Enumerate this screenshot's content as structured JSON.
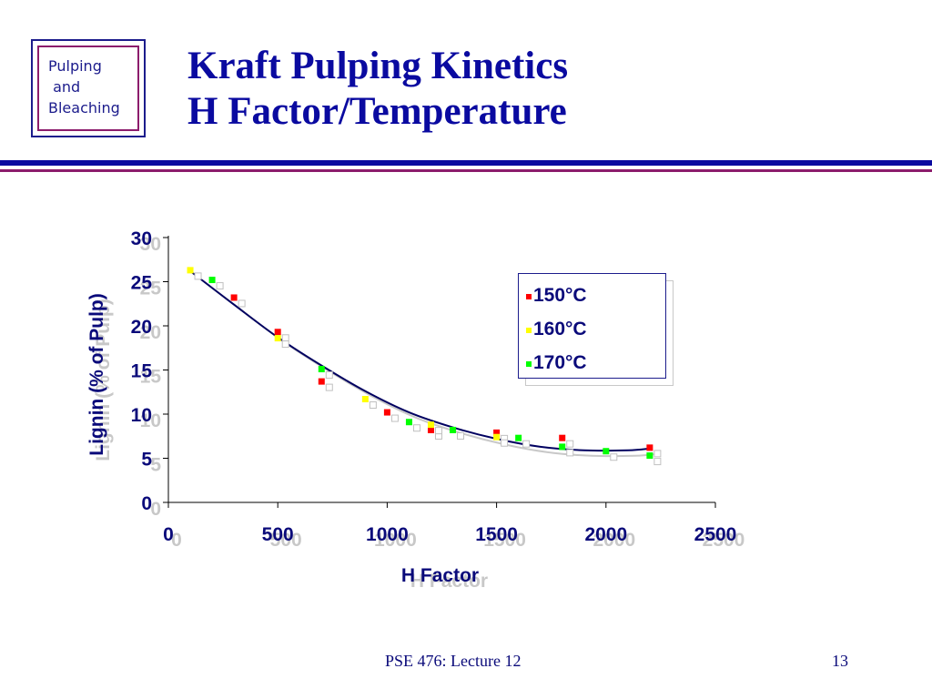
{
  "logo": {
    "lines": [
      "Pulping",
      " and",
      "Bleaching"
    ]
  },
  "title": {
    "line1": "Kraft Pulping Kinetics",
    "line2": "H Factor/Temperature"
  },
  "footer": {
    "course": "PSE 476: Lecture 12",
    "page": "13"
  },
  "colors": {
    "accent": "#0a0aa0",
    "secondary": "#8c1c6c"
  },
  "chart_data": {
    "type": "scatter",
    "xlabel": "H Factor",
    "ylabel": "Lignin (% of Pulp)",
    "xlim": [
      0,
      2500
    ],
    "ylim": [
      0,
      30
    ],
    "x_ticks": [
      "0",
      "500",
      "1000",
      "1500",
      "2000",
      "2500"
    ],
    "y_ticks": [
      "0",
      "5",
      "10",
      "15",
      "20",
      "25",
      "30"
    ],
    "legend_position": "top-right",
    "series": [
      {
        "name": "150°C",
        "color": "#ff0000",
        "points": [
          [
            300,
            23.2
          ],
          [
            500,
            19.3
          ],
          [
            700,
            13.7
          ],
          [
            1000,
            10.2
          ],
          [
            1200,
            8.2
          ],
          [
            1500,
            7.9
          ],
          [
            1800,
            7.3
          ],
          [
            2200,
            6.2
          ]
        ]
      },
      {
        "name": "160°C",
        "color": "#ffff00",
        "points": [
          [
            100,
            26.3
          ],
          [
            500,
            18.6
          ],
          [
            900,
            11.7
          ],
          [
            1200,
            8.8
          ],
          [
            1500,
            7.4
          ]
        ]
      },
      {
        "name": "170°C",
        "color": "#00ff00",
        "points": [
          [
            200,
            25.2
          ],
          [
            700,
            15.1
          ],
          [
            1100,
            9.1
          ],
          [
            1300,
            8.2
          ],
          [
            1600,
            7.3
          ],
          [
            1800,
            6.3
          ],
          [
            2000,
            5.8
          ],
          [
            2200,
            5.3
          ]
        ]
      }
    ],
    "trendline": [
      [
        100,
        26.2
      ],
      [
        300,
        22.4
      ],
      [
        500,
        18.7
      ],
      [
        700,
        15.5
      ],
      [
        900,
        12.6
      ],
      [
        1100,
        10.2
      ],
      [
        1300,
        8.5
      ],
      [
        1500,
        7.2
      ],
      [
        1700,
        6.3
      ],
      [
        1900,
        5.9
      ],
      [
        2100,
        5.9
      ],
      [
        2200,
        6.1
      ]
    ]
  }
}
